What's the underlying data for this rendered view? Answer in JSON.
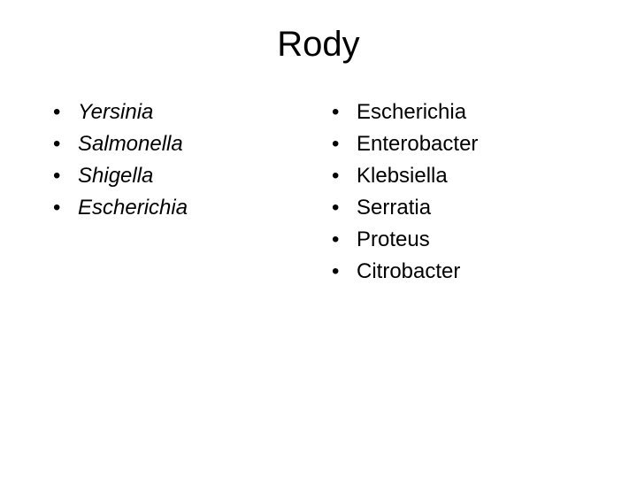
{
  "title": "Rody",
  "leftColumn": {
    "items": [
      {
        "label": "Yersinia"
      },
      {
        "label": "Salmonella"
      },
      {
        "label": "Shigella"
      },
      {
        "label": "Escherichia"
      }
    ]
  },
  "rightColumn": {
    "items": [
      {
        "label": "Escherichia"
      },
      {
        "label": "Enterobacter"
      },
      {
        "label": "Klebsiella"
      },
      {
        "label": "Serratia"
      },
      {
        "label": "Proteus"
      },
      {
        "label": "Citrobacter"
      }
    ]
  },
  "style": {
    "backgroundColor": "#ffffff",
    "textColor": "#000000",
    "titleFontSize": 40,
    "itemFontSize": 24,
    "bulletChar": "•",
    "leftItalic": true,
    "rightItalic": false
  }
}
